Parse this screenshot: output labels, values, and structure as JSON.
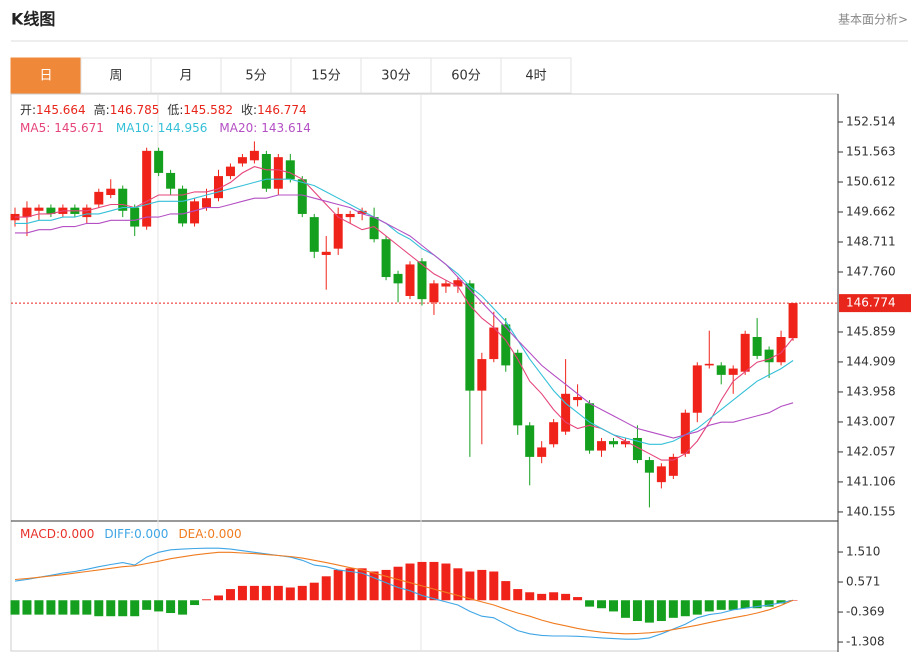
{
  "header": {
    "title": "K线图",
    "link": "基本面分析>"
  },
  "tabs": [
    "日",
    "周",
    "月",
    "5分",
    "15分",
    "30分",
    "60分",
    "4时"
  ],
  "active_tab": 0,
  "chart_data": [
    {
      "type": "candlestick",
      "open": [
        149.4,
        149.5,
        149.7,
        149.8,
        149.6,
        149.8,
        149.5,
        149.9,
        150.2,
        150.4,
        149.8,
        149.2,
        151.6,
        150.9,
        150.4,
        149.3,
        149.8,
        150.1,
        150.8,
        151.2,
        151.3,
        151.5,
        150.4,
        151.3,
        150.7,
        149.5,
        148.3,
        148.5,
        149.5,
        149.6,
        149.5,
        148.8,
        147.7,
        147.0,
        148.1,
        146.8,
        147.3,
        147.3,
        147.4,
        144.0,
        145.0,
        146.1,
        145.2,
        142.9,
        141.9,
        142.3,
        142.7,
        143.7,
        143.6,
        142.1,
        142.4,
        142.3,
        142.5,
        141.8,
        141.1,
        141.3,
        142.0,
        143.3,
        144.8,
        144.8,
        144.5,
        144.6,
        145.7,
        145.3,
        144.9,
        145.664
      ],
      "high": [
        149.8,
        150.0,
        149.9,
        149.9,
        149.9,
        149.9,
        149.9,
        150.4,
        150.7,
        150.5,
        149.9,
        151.7,
        151.7,
        151.0,
        150.5,
        150.1,
        150.4,
        151.0,
        151.2,
        151.5,
        151.9,
        151.6,
        151.5,
        151.5,
        150.8,
        149.6,
        148.9,
        149.8,
        149.7,
        149.8,
        149.8,
        148.9,
        147.8,
        148.1,
        148.2,
        147.5,
        147.5,
        147.6,
        147.5,
        145.2,
        146.5,
        146.3,
        145.3,
        143.0,
        142.4,
        143.1,
        145.0,
        144.2,
        143.7,
        142.5,
        142.5,
        142.5,
        142.9,
        141.9,
        141.7,
        142.0,
        143.4,
        144.9,
        145.9,
        144.9,
        144.8,
        145.9,
        146.3,
        145.4,
        145.9,
        146.785
      ],
      "low": [
        149.2,
        148.9,
        149.4,
        149.5,
        149.5,
        149.5,
        149.3,
        149.8,
        150.1,
        149.5,
        148.9,
        149.1,
        150.8,
        150.2,
        149.2,
        149.2,
        149.7,
        150.0,
        150.7,
        151.1,
        151.2,
        150.3,
        150.2,
        150.6,
        149.5,
        148.2,
        147.2,
        148.3,
        149.3,
        149.4,
        148.7,
        147.5,
        146.8,
        146.9,
        146.7,
        146.4,
        147.1,
        147.1,
        141.9,
        142.3,
        144.9,
        144.6,
        142.6,
        141.0,
        141.7,
        142.2,
        142.6,
        143.5,
        142.0,
        141.9,
        142.2,
        142.2,
        141.7,
        140.3,
        140.9,
        141.2,
        141.9,
        143.0,
        144.7,
        144.2,
        143.9,
        144.5,
        145.0,
        144.4,
        144.8,
        145.582
      ],
      "close": [
        149.6,
        149.8,
        149.8,
        149.6,
        149.8,
        149.6,
        149.8,
        150.3,
        150.4,
        149.7,
        149.2,
        151.6,
        150.9,
        150.4,
        149.3,
        150.0,
        150.1,
        150.8,
        151.1,
        151.4,
        151.6,
        150.4,
        151.4,
        150.7,
        149.6,
        148.4,
        148.4,
        149.6,
        149.6,
        149.7,
        148.8,
        147.6,
        147.4,
        148.0,
        146.9,
        147.4,
        147.4,
        147.5,
        144.0,
        145.0,
        146.0,
        144.8,
        142.9,
        141.9,
        142.2,
        143.0,
        143.9,
        143.8,
        142.1,
        142.4,
        142.3,
        142.4,
        141.8,
        141.4,
        141.6,
        141.9,
        143.3,
        144.8,
        144.85,
        144.5,
        144.7,
        145.8,
        145.1,
        144.9,
        145.7,
        146.774
      ],
      "up_color": "#f0231a",
      "down_color": "#14a01e",
      "info_labels": [
        "开:",
        "高:",
        "低:",
        "收:"
      ],
      "info_color": "#e8261c",
      "current_price_line": true,
      "series": [
        {
          "label": "MA5:",
          "color": "#e5457a",
          "values": [
            149.5,
            149.5,
            149.6,
            149.6,
            149.7,
            149.7,
            149.7,
            149.8,
            149.9,
            149.9,
            149.8,
            150.0,
            150.2,
            150.2,
            150.2,
            150.3,
            150.3,
            150.4,
            150.6,
            150.9,
            151.1,
            151.0,
            151.0,
            150.9,
            150.7,
            150.3,
            149.9,
            149.5,
            149.3,
            149.1,
            149.2,
            148.9,
            148.6,
            148.3,
            148.0,
            147.7,
            147.5,
            147.3,
            146.7,
            146.3,
            146.0,
            145.6,
            145.0,
            144.3,
            143.9,
            143.4,
            143.0,
            142.8,
            142.9,
            142.8,
            142.6,
            142.4,
            142.2,
            142.0,
            141.8,
            141.8,
            142.0,
            142.4,
            143.0,
            143.7,
            144.3,
            144.6,
            144.9,
            145.0,
            145.2,
            145.671
          ]
        },
        {
          "label": "MA10:",
          "color": "#35c0d8",
          "values": [
            149.3,
            149.3,
            149.4,
            149.4,
            149.5,
            149.5,
            149.6,
            149.6,
            149.7,
            149.8,
            149.8,
            149.9,
            150.0,
            150.0,
            150.0,
            150.1,
            150.2,
            150.3,
            150.4,
            150.5,
            150.6,
            150.7,
            150.7,
            150.7,
            150.6,
            150.5,
            150.3,
            150.1,
            149.9,
            149.7,
            149.5,
            149.3,
            149.0,
            148.8,
            148.5,
            148.3,
            148.0,
            147.7,
            147.3,
            147.0,
            146.6,
            146.2,
            145.6,
            145.0,
            144.5,
            144.0,
            143.6,
            143.3,
            143.0,
            142.8,
            142.6,
            142.5,
            142.4,
            142.3,
            142.3,
            142.4,
            142.6,
            142.8,
            143.1,
            143.4,
            143.7,
            144.0,
            144.3,
            144.5,
            144.7,
            144.956
          ]
        },
        {
          "label": "MA20:",
          "color": "#b44fc4",
          "values": [
            149.0,
            149.0,
            149.1,
            149.1,
            149.2,
            149.2,
            149.3,
            149.3,
            149.4,
            149.4,
            149.4,
            149.5,
            149.5,
            149.6,
            149.6,
            149.7,
            149.8,
            149.8,
            149.9,
            150.0,
            150.1,
            150.1,
            150.2,
            150.2,
            150.2,
            150.1,
            150.0,
            149.9,
            149.8,
            149.6,
            149.5,
            149.3,
            149.1,
            148.9,
            148.6,
            148.3,
            148.0,
            147.6,
            147.2,
            146.8,
            146.4,
            146.0,
            145.6,
            145.2,
            144.8,
            144.5,
            144.2,
            143.9,
            143.6,
            143.4,
            143.2,
            143.0,
            142.8,
            142.7,
            142.6,
            142.5,
            142.6,
            142.7,
            142.9,
            143.0,
            143.0,
            143.1,
            143.2,
            143.3,
            143.5,
            143.614
          ]
        }
      ],
      "ylim": [
        139.9,
        153.37
      ],
      "yticks": [
        152.514,
        151.563,
        150.612,
        149.662,
        148.711,
        {
          "value": 147.76,
          "label": "147.760"
        },
        145.859,
        144.909,
        143.958,
        143.007,
        142.057,
        141.106,
        140.155
      ]
    },
    {
      "type": "macd",
      "series": [
        {
          "label": "MACD:",
          "kind": "bar",
          "color": "#e8322b",
          "up_color": "#f0231a",
          "down_color": "#14a01e",
          "current_label": "0.000",
          "values": [
            -0.45,
            -0.45,
            -0.45,
            -0.45,
            -0.45,
            -0.45,
            -0.45,
            -0.5,
            -0.5,
            -0.5,
            -0.5,
            -0.3,
            -0.35,
            -0.4,
            -0.45,
            -0.15,
            0.03,
            0.15,
            0.35,
            0.45,
            0.45,
            0.45,
            0.45,
            0.4,
            0.45,
            0.55,
            0.75,
            0.95,
            1.0,
            1.0,
            0.9,
            0.95,
            1.05,
            1.15,
            1.2,
            1.2,
            1.15,
            1.0,
            0.9,
            0.95,
            0.9,
            0.6,
            0.35,
            0.25,
            0.2,
            0.25,
            0.2,
            0.1,
            -0.2,
            -0.25,
            -0.35,
            -0.55,
            -0.65,
            -0.7,
            -0.65,
            -0.55,
            -0.5,
            -0.45,
            -0.35,
            -0.3,
            -0.3,
            -0.25,
            -0.25,
            -0.2,
            -0.1,
            0
          ]
        },
        {
          "label": "DIFF:",
          "kind": "line",
          "color": "#3fa6e5",
          "current_label": "0.000",
          "values": [
            0.6,
            0.65,
            0.72,
            0.78,
            0.85,
            0.9,
            0.97,
            1.05,
            1.12,
            1.18,
            1.1,
            1.35,
            1.5,
            1.58,
            1.6,
            1.62,
            1.63,
            1.63,
            1.6,
            1.55,
            1.5,
            1.45,
            1.4,
            1.35,
            1.25,
            1.1,
            1.05,
            0.95,
            0.9,
            0.85,
            0.7,
            0.55,
            0.4,
            0.3,
            0.15,
            0.05,
            -0.05,
            -0.15,
            -0.35,
            -0.5,
            -0.55,
            -0.75,
            -0.95,
            -1.05,
            -1.1,
            -1.12,
            -1.12,
            -1.13,
            -1.15,
            -1.18,
            -1.2,
            -1.22,
            -1.22,
            -1.18,
            -1.05,
            -0.9,
            -0.75,
            -0.55,
            -0.45,
            -0.4,
            -0.3,
            -0.25,
            -0.2,
            -0.15,
            -0.08,
            0
          ]
        },
        {
          "label": "DEA:",
          "kind": "line",
          "color": "#f07c20",
          "current_label": "0.000",
          "values": [
            0.65,
            0.68,
            0.72,
            0.76,
            0.8,
            0.85,
            0.9,
            0.95,
            1.0,
            1.05,
            1.08,
            1.15,
            1.22,
            1.3,
            1.36,
            1.42,
            1.46,
            1.5,
            1.5,
            1.48,
            1.46,
            1.43,
            1.4,
            1.37,
            1.32,
            1.25,
            1.18,
            1.1,
            1.02,
            0.95,
            0.85,
            0.75,
            0.65,
            0.55,
            0.45,
            0.35,
            0.25,
            0.15,
            0.05,
            -0.05,
            -0.15,
            -0.28,
            -0.4,
            -0.5,
            -0.62,
            -0.72,
            -0.8,
            -0.88,
            -0.95,
            -1.0,
            -1.03,
            -1.05,
            -1.04,
            -1.02,
            -0.98,
            -0.92,
            -0.85,
            -0.78,
            -0.7,
            -0.62,
            -0.55,
            -0.48,
            -0.4,
            -0.3,
            -0.16,
            0
          ]
        }
      ],
      "ylim": [
        -1.62,
        2.45
      ],
      "yticks": [
        {
          "value": 1.51,
          "label": "1.510"
        },
        0.571,
        -0.369,
        -1.308
      ]
    }
  ]
}
